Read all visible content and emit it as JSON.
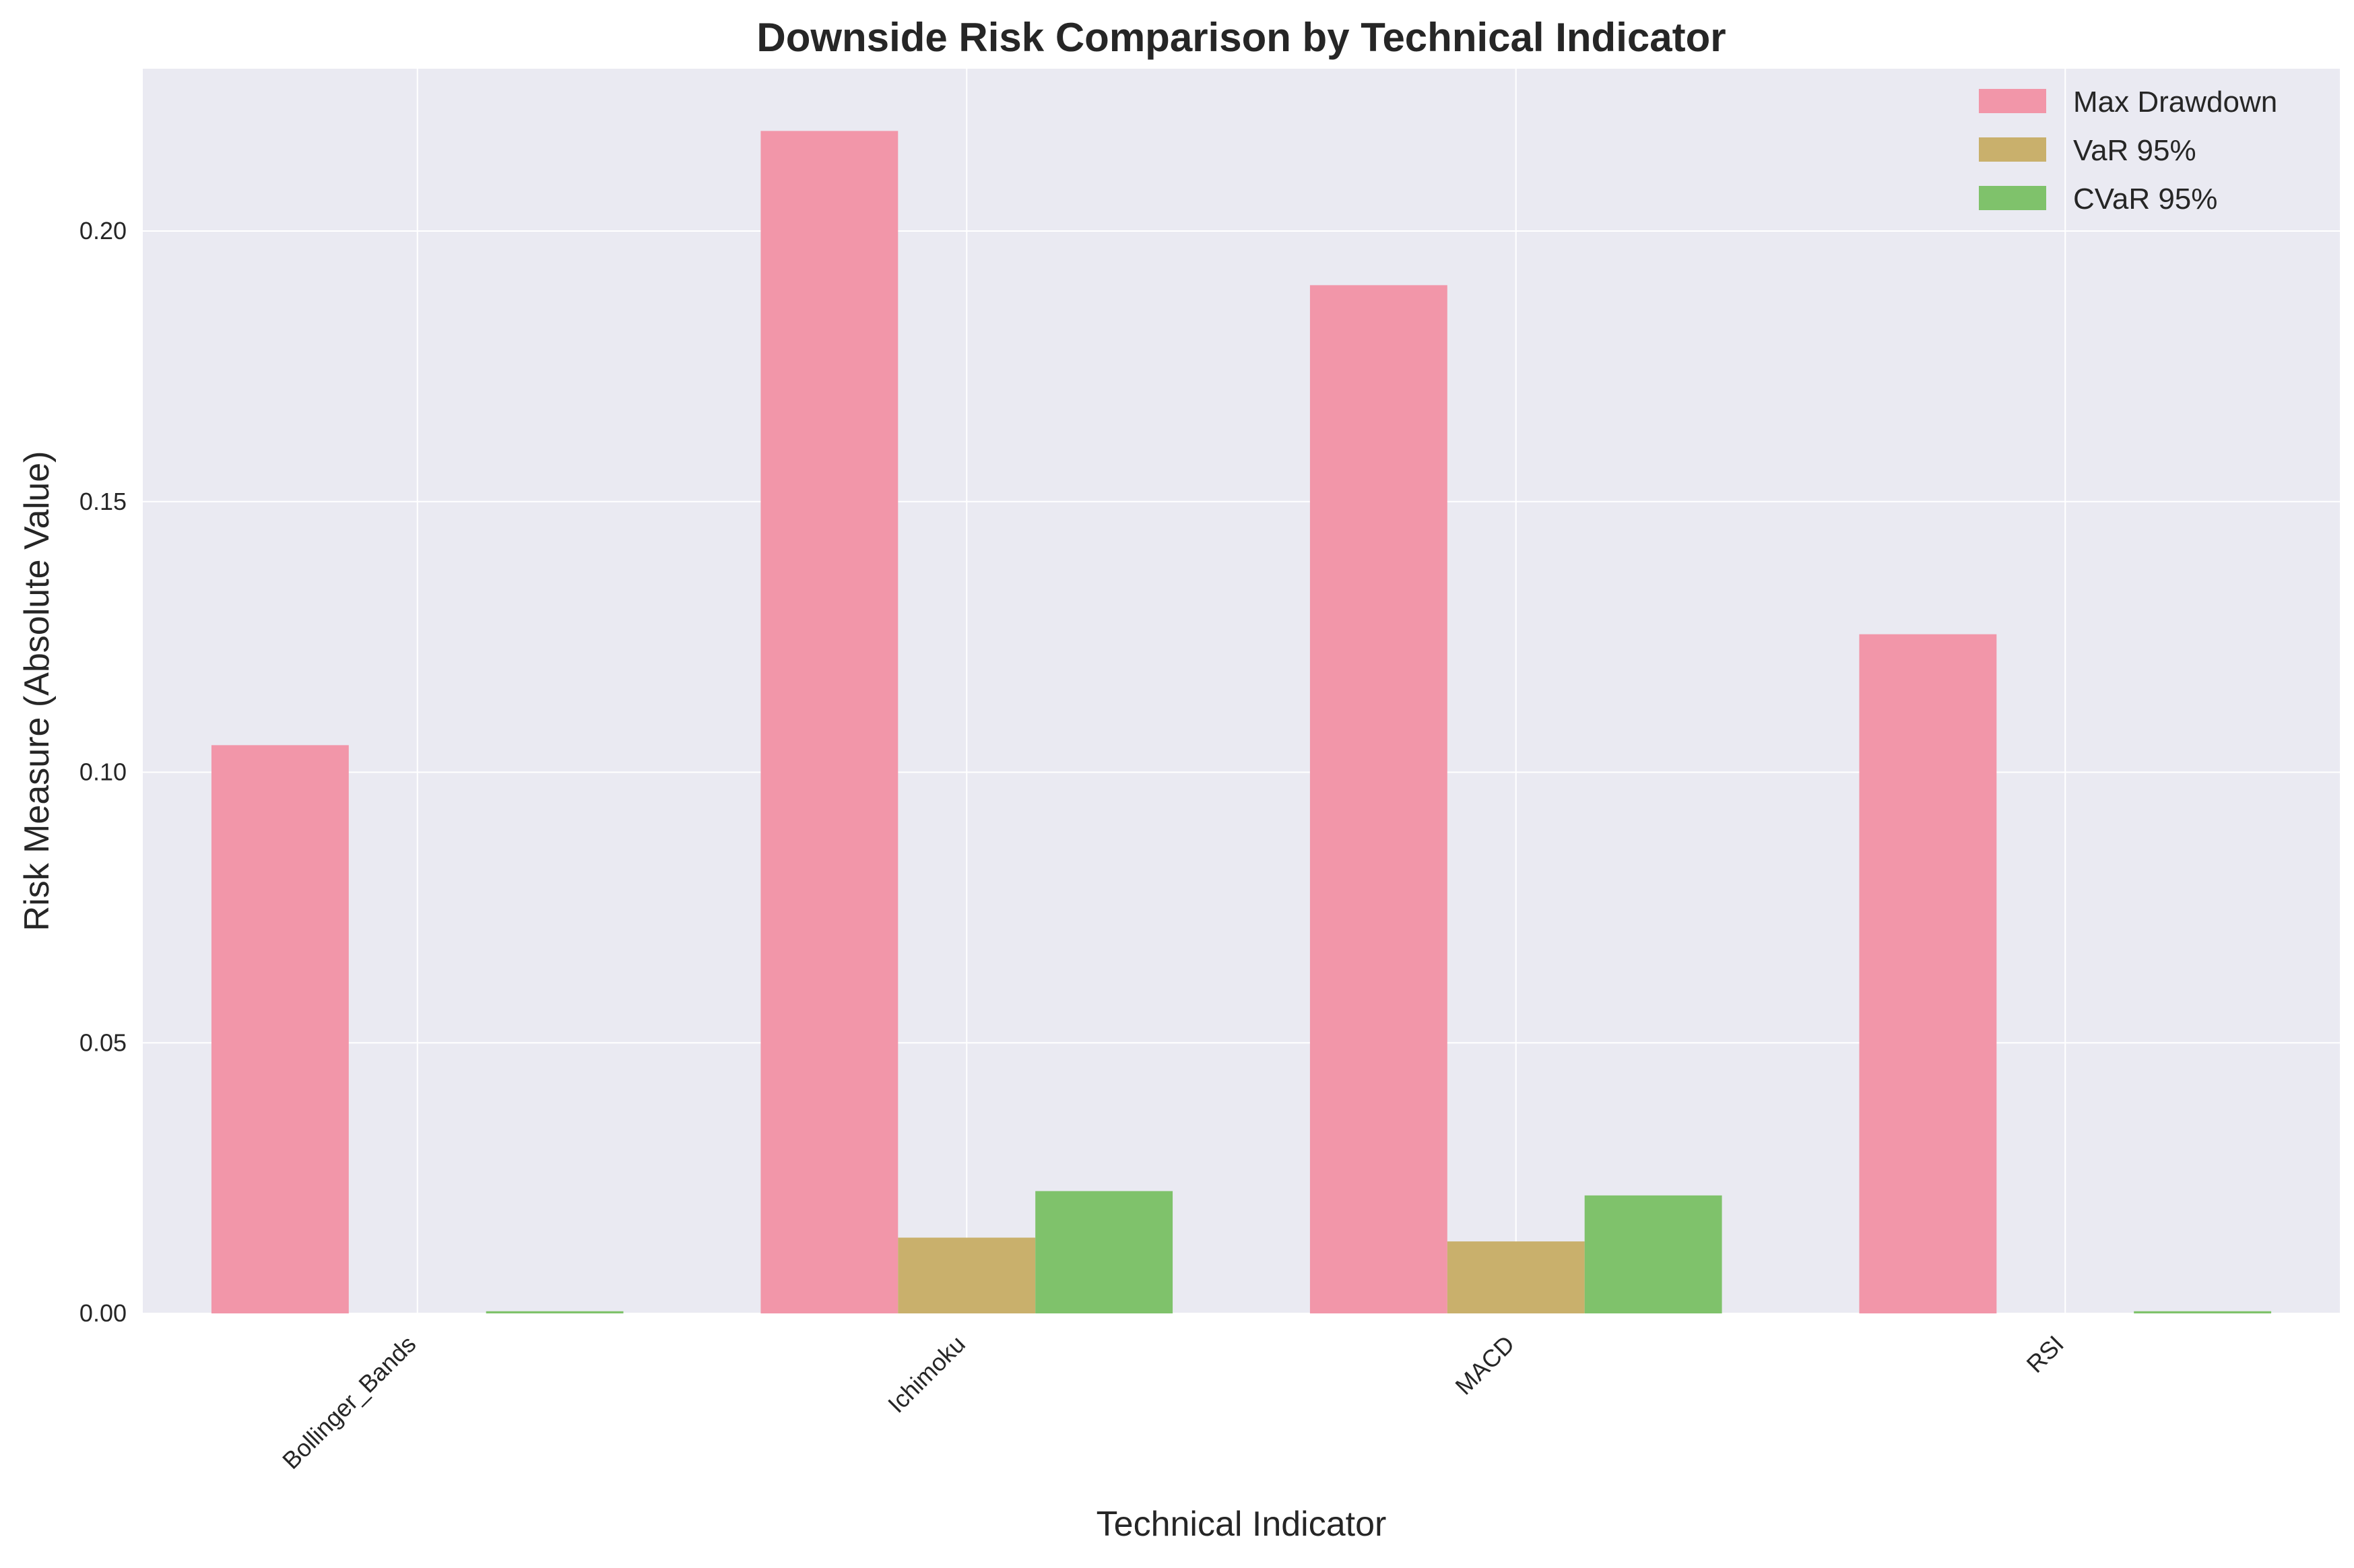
{
  "chart_data": {
    "type": "bar",
    "title": "Downside Risk Comparison by Technical Indicator",
    "xlabel": "Technical Indicator",
    "ylabel": "Risk Measure (Absolute Value)",
    "categories": [
      "Bollinger_Bands",
      "Ichimoku",
      "MACD",
      "RSI"
    ],
    "series": [
      {
        "name": "Max Drawdown",
        "values": [
          0.105,
          0.2185,
          0.19,
          0.1255
        ],
        "color": "#f296a9"
      },
      {
        "name": "VaR 95%",
        "values": [
          0.0,
          0.014,
          0.0133,
          0.0
        ],
        "color": "#c9b06c"
      },
      {
        "name": "CVaR 95%",
        "values": [
          0.0004,
          0.0226,
          0.0218,
          0.0004
        ],
        "color": "#7fc26b"
      }
    ],
    "ylim": [
      0,
      0.23
    ],
    "yticks": [
      "0.00",
      "0.05",
      "0.10",
      "0.15",
      "0.20"
    ],
    "ytick_values": [
      0,
      0.05,
      0.1,
      0.15,
      0.2
    ],
    "grid": true,
    "legend_position": "top-right",
    "background_color": "#eaeaf2"
  }
}
